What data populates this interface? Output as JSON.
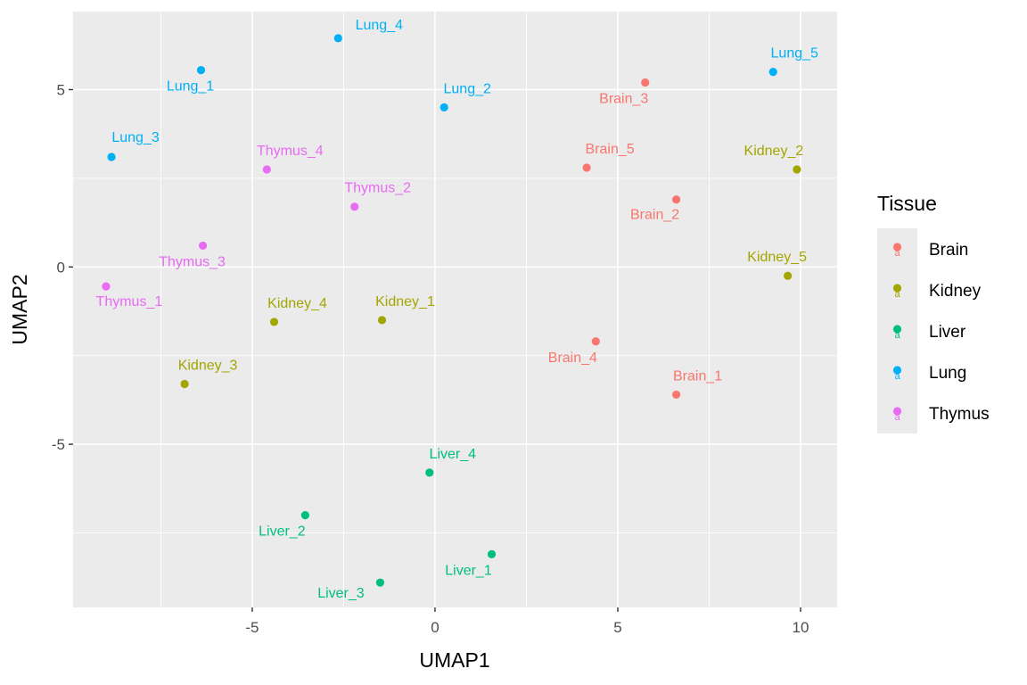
{
  "chart_data": {
    "type": "scatter",
    "xlabel": "UMAP1",
    "ylabel": "UMAP2",
    "xlim": [
      -9.9,
      11.0
    ],
    "ylim": [
      -9.6,
      7.2
    ],
    "x_ticks": [
      -5,
      0,
      5,
      10
    ],
    "y_ticks": [
      -5,
      0,
      5
    ],
    "x_tick_labels": [
      "-5",
      "0",
      "5",
      "10"
    ],
    "y_tick_labels": [
      "-5",
      "0",
      "5"
    ],
    "grid": true,
    "legend": {
      "title": "Tissue",
      "placement": "right",
      "entries": [
        {
          "name": "Brain",
          "color": "#F8766D"
        },
        {
          "name": "Kidney",
          "color": "#A3A500"
        },
        {
          "name": "Liver",
          "color": "#00BF7D"
        },
        {
          "name": "Lung",
          "color": "#00B0F6"
        },
        {
          "name": "Thymus",
          "color": "#E76BF3"
        }
      ]
    },
    "points": [
      {
        "label": "Brain_1",
        "tissue": "Brain",
        "x": 6.6,
        "y": -3.6
      },
      {
        "label": "Brain_2",
        "tissue": "Brain",
        "x": 6.6,
        "y": 1.9
      },
      {
        "label": "Brain_3",
        "tissue": "Brain",
        "x": 5.75,
        "y": 5.2
      },
      {
        "label": "Brain_4",
        "tissue": "Brain",
        "x": 4.4,
        "y": -2.1
      },
      {
        "label": "Brain_5",
        "tissue": "Brain",
        "x": 4.15,
        "y": 2.8
      },
      {
        "label": "Kidney_1",
        "tissue": "Kidney",
        "x": -1.45,
        "y": -1.5
      },
      {
        "label": "Kidney_2",
        "tissue": "Kidney",
        "x": 9.9,
        "y": 2.75
      },
      {
        "label": "Kidney_3",
        "tissue": "Kidney",
        "x": -6.85,
        "y": -3.3
      },
      {
        "label": "Kidney_4",
        "tissue": "Kidney",
        "x": -4.4,
        "y": -1.55
      },
      {
        "label": "Kidney_5",
        "tissue": "Kidney",
        "x": 9.65,
        "y": -0.25
      },
      {
        "label": "Liver_1",
        "tissue": "Liver",
        "x": 1.55,
        "y": -8.1
      },
      {
        "label": "Liver_2",
        "tissue": "Liver",
        "x": -3.55,
        "y": -7.0
      },
      {
        "label": "Liver_3",
        "tissue": "Liver",
        "x": -1.5,
        "y": -8.9
      },
      {
        "label": "Liver_4",
        "tissue": "Liver",
        "x": -0.15,
        "y": -5.8
      },
      {
        "label": "Lung_1",
        "tissue": "Lung",
        "x": -6.4,
        "y": 5.55
      },
      {
        "label": "Lung_2",
        "tissue": "Lung",
        "x": 0.25,
        "y": 4.5
      },
      {
        "label": "Lung_3",
        "tissue": "Lung",
        "x": -8.85,
        "y": 3.1
      },
      {
        "label": "Lung_4",
        "tissue": "Lung",
        "x": -2.65,
        "y": 6.45
      },
      {
        "label": "Lung_5",
        "tissue": "Lung",
        "x": 9.25,
        "y": 5.5
      },
      {
        "label": "Thymus_1",
        "tissue": "Thymus",
        "x": -9.0,
        "y": -0.55
      },
      {
        "label": "Thymus_2",
        "tissue": "Thymus",
        "x": -2.2,
        "y": 1.7
      },
      {
        "label": "Thymus_3",
        "tissue": "Thymus",
        "x": -6.35,
        "y": 0.6
      },
      {
        "label": "Thymus_4",
        "tissue": "Thymus",
        "x": -4.6,
        "y": 2.75
      }
    ]
  }
}
